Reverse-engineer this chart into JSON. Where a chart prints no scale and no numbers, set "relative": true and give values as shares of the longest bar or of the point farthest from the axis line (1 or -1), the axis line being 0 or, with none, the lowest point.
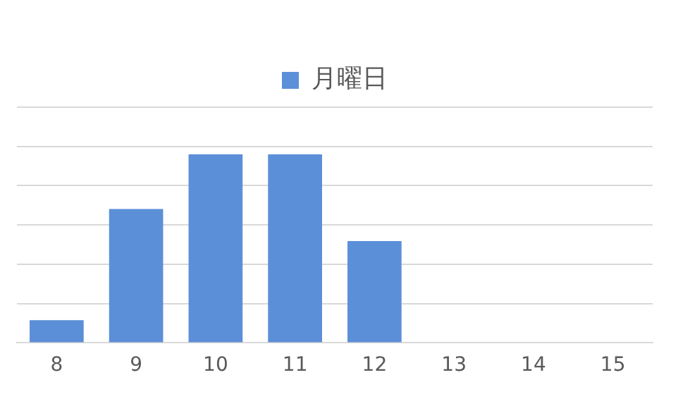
{
  "chart_data": {
    "type": "bar",
    "relative": true,
    "categories": [
      "8",
      "9",
      "10",
      "11",
      "12",
      "13",
      "14",
      "15"
    ],
    "series": [
      {
        "name": "月曜日",
        "color": "#5b8fd8",
        "values": [
          0.12,
          0.71,
          1,
          1,
          0.54,
          0,
          0,
          0
        ]
      }
    ],
    "grid": "y",
    "legend": "top"
  }
}
